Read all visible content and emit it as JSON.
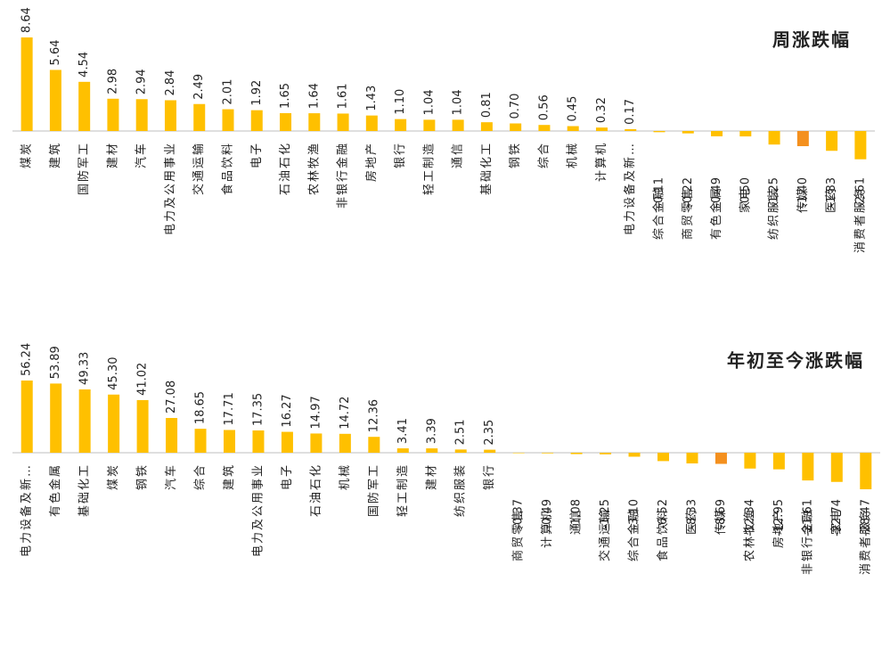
{
  "chart_data": [
    {
      "type": "bar",
      "title": "周涨跌幅",
      "categories": [
        "煤炭",
        "建筑",
        "国防军工",
        "建材",
        "汽车",
        "电力及公用事业",
        "交通运输",
        "食品饮料",
        "电子",
        "石油石化",
        "农林牧渔",
        "非银行金融",
        "房地产",
        "银行",
        "轻工制造",
        "通信",
        "基础化工",
        "钢铁",
        "综合",
        "机械",
        "计算机",
        "电力设备及新…",
        "综合金融",
        "商贸零售",
        "有色金属",
        "家电",
        "纺织服装",
        "传媒",
        "医药",
        "消费者服务"
      ],
      "values": [
        8.64,
        5.64,
        4.54,
        2.98,
        2.94,
        2.84,
        2.49,
        2.01,
        1.92,
        1.65,
        1.64,
        1.61,
        1.43,
        1.1,
        1.04,
        1.04,
        0.81,
        0.7,
        0.56,
        0.45,
        0.32,
        0.17,
        -0.11,
        -0.22,
        -0.49,
        -0.5,
        -1.25,
        -1.4,
        -1.83,
        -2.61
      ],
      "value_labels": [
        "8.64",
        "5.64",
        "4.54",
        "2.98",
        "2.94",
        "2.84",
        "2.49",
        "2.01",
        "1.92",
        "1.65",
        "1.64",
        "1.61",
        "1.43",
        "1.10",
        "1.04",
        "1.04",
        "0.81",
        "0.70",
        "0.56",
        "0.45",
        "0.32",
        "0.17",
        "-0.11",
        "-0.22",
        "-0.49",
        "-0.50",
        "-1.25",
        "-1.40",
        "-1.83",
        "-2.61"
      ],
      "colors": [
        "#FFC000",
        "#FFC000",
        "#FFC000",
        "#FFC000",
        "#FFC000",
        "#FFC000",
        "#FFC000",
        "#FFC000",
        "#FFC000",
        "#FFC000",
        "#FFC000",
        "#FFC000",
        "#FFC000",
        "#FFC000",
        "#FFC000",
        "#FFC000",
        "#FFC000",
        "#FFC000",
        "#FFC000",
        "#FFC000",
        "#FFC000",
        "#FFC000",
        "#FFC000",
        "#FFC000",
        "#FFC000",
        "#FFC000",
        "#FFC000",
        "#F4901E",
        "#FFC000",
        "#FFC000"
      ]
    },
    {
      "type": "bar",
      "title": "年初至今涨跌幅",
      "categories": [
        "电力设备及新…",
        "有色金属",
        "基础化工",
        "煤炭",
        "钢铁",
        "汽车",
        "综合",
        "建筑",
        "电力及公用事业",
        "电子",
        "石油石化",
        "机械",
        "国防军工",
        "轻工制造",
        "建材",
        "纺织服装",
        "银行",
        "商贸零售",
        "计算机",
        "通信",
        "交通运输",
        "综合金融",
        "食品饮料",
        "医药",
        "传媒",
        "农林牧渔",
        "房地产",
        "非银行金融",
        "家电",
        "消费者服务"
      ],
      "values": [
        56.24,
        53.89,
        49.33,
        45.3,
        41.02,
        27.08,
        18.65,
        17.71,
        17.35,
        16.27,
        14.97,
        14.72,
        12.36,
        3.41,
        3.39,
        2.51,
        2.35,
        -0.37,
        -0.49,
        -1.08,
        -1.25,
        -3.1,
        -6.52,
        -8.33,
        -8.69,
        -12.34,
        -12.95,
        -21.61,
        -22.74,
        -28.47
      ],
      "value_labels": [
        "56.24",
        "53.89",
        "49.33",
        "45.30",
        "41.02",
        "27.08",
        "18.65",
        "17.71",
        "17.35",
        "16.27",
        "14.97",
        "14.72",
        "12.36",
        "3.41",
        "3.39",
        "2.51",
        "2.35",
        "-0.37",
        "-0.49",
        "-1.08",
        "-1.25",
        "-3.10",
        "-6.52",
        "-8.33",
        "-8.69",
        "-12.34",
        "-12.95",
        "-21.61",
        "-22.74",
        "-28.47"
      ],
      "colors": [
        "#FFC000",
        "#FFC000",
        "#FFC000",
        "#FFC000",
        "#FFC000",
        "#FFC000",
        "#FFC000",
        "#FFC000",
        "#FFC000",
        "#FFC000",
        "#FFC000",
        "#FFC000",
        "#FFC000",
        "#FFC000",
        "#FFC000",
        "#FFC000",
        "#FFC000",
        "#FFC000",
        "#FFC000",
        "#FFC000",
        "#FFC000",
        "#FFC000",
        "#FFC000",
        "#FFC000",
        "#F4901E",
        "#FFC000",
        "#FFC000",
        "#FFC000",
        "#FFC000",
        "#FFC000"
      ]
    }
  ]
}
